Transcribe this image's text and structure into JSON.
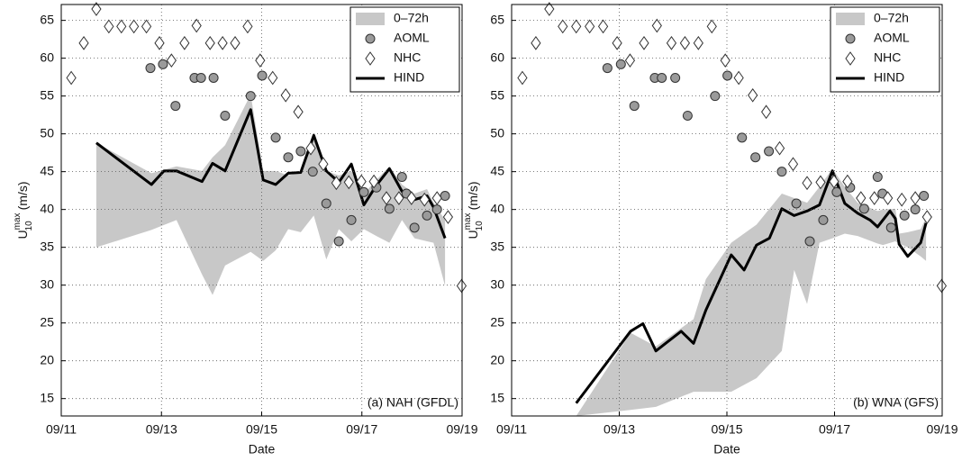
{
  "chart_data": [
    {
      "type": "line",
      "annotation": "(a) NAH (GFDL)",
      "x_label": "Date",
      "y_label": "U",
      "y_label_sup": "max",
      "y_label_sub": "10",
      "y_label_unit": "(m/s)",
      "xlim": [
        11,
        19
      ],
      "xticks": [
        {
          "value": 11,
          "label": "09/11"
        },
        {
          "value": 13,
          "label": "09/13"
        },
        {
          "value": 15,
          "label": "09/15"
        },
        {
          "value": 17,
          "label": "09/17"
        },
        {
          "value": 19,
          "label": "09/19"
        }
      ],
      "ylim": [
        12.7,
        67.1
      ],
      "yticks": [
        15,
        20,
        25,
        30,
        35,
        40,
        45,
        50,
        55,
        60,
        65
      ],
      "grid": true,
      "legend": "upper right",
      "series": [
        {
          "name": "0–72h",
          "type": "area",
          "color": "#c8c8c8",
          "x": [
            11.7,
            12.8,
            13.3,
            13.81,
            14.02,
            14.27,
            14.78,
            15.03,
            15.28,
            15.53,
            15.78,
            16.04,
            16.29,
            16.54,
            16.79,
            17.04,
            17.29,
            17.55,
            17.8,
            18.05,
            18.3,
            18.43,
            18.66
          ],
          "high": [
            48.8,
            44.8,
            45.7,
            45.1,
            46.9,
            48.5,
            55.2,
            45.1,
            45.1,
            44.5,
            44.9,
            49.9,
            45.1,
            44.5,
            45.1,
            42.1,
            43.9,
            45.7,
            43.3,
            42.1,
            42.7,
            40.9,
            38.6
          ],
          "low": [
            35,
            37.3,
            38.6,
            31.4,
            28.7,
            32.6,
            34.4,
            33.2,
            34.6,
            37.4,
            37,
            39.2,
            33.4,
            37.4,
            35.8,
            37.4,
            36.5,
            35.6,
            38.6,
            36.2,
            35.8,
            35.6,
            29.9
          ]
        },
        {
          "name": "AOML",
          "type": "scatter",
          "marker": "circle",
          "color": "#9a9a9a",
          "x": [
            12.78,
            13.03,
            13.28,
            13.66,
            13.79,
            14.04,
            14.27,
            14.78,
            15.01,
            15.28,
            15.53,
            15.78,
            16.02,
            16.29,
            16.54,
            16.79,
            17.04,
            17.29,
            17.55,
            17.8,
            17.89,
            18.05,
            18.3,
            18.5,
            18.66
          ],
          "values": [
            58.7,
            59.2,
            53.7,
            57.4,
            57.4,
            57.4,
            52.4,
            55,
            57.7,
            49.5,
            46.9,
            47.7,
            45,
            40.8,
            35.8,
            38.6,
            42.3,
            42.9,
            40.1,
            44.3,
            42.1,
            37.6,
            39.2,
            40,
            41.8
          ]
        },
        {
          "name": "NHC",
          "type": "scatter",
          "marker": "diamond",
          "color": "#ffffff",
          "x": [
            11.2,
            11.45,
            11.7,
            11.95,
            12.2,
            12.45,
            12.7,
            12.96,
            13.2,
            13.46,
            13.7,
            13.97,
            14.22,
            14.47,
            14.72,
            14.97,
            15.22,
            15.48,
            15.73,
            15.98,
            16.23,
            16.49,
            16.74,
            16.99,
            17.24,
            17.49,
            17.74,
            17.99,
            18.25,
            18.5,
            18.72,
            18.99
          ],
          "values": [
            57.4,
            62,
            66.5,
            64.2,
            64.2,
            64.2,
            64.2,
            62,
            59.7,
            62,
            64.3,
            62,
            62,
            62,
            64.2,
            59.7,
            57.4,
            55.1,
            52.9,
            48.1,
            46,
            43.5,
            43.6,
            43.7,
            43.7,
            41.5,
            41.5,
            41.5,
            41.3,
            41.5,
            39,
            29.9
          ]
        },
        {
          "name": "HIND",
          "type": "line",
          "color": "#000000",
          "x": [
            11.7,
            12.8,
            13.05,
            13.3,
            13.81,
            14.02,
            14.27,
            14.78,
            15.03,
            15.28,
            15.53,
            15.78,
            16.04,
            16.29,
            16.54,
            16.79,
            17.04,
            17.29,
            17.55,
            17.8,
            18.05,
            18.3,
            18.43,
            18.66
          ],
          "values": [
            48.8,
            43.3,
            45.1,
            45.1,
            43.7,
            46.1,
            45.1,
            53.2,
            43.9,
            43.3,
            44.8,
            44.9,
            49.8,
            45.1,
            43.6,
            46,
            40.6,
            43.2,
            45.4,
            42.4,
            41.3,
            41.8,
            40.3,
            36.2
          ]
        }
      ]
    },
    {
      "type": "line",
      "annotation": "(b) WNA (GFS)",
      "x_label": "Date",
      "y_label": "U",
      "y_label_sup": "max",
      "y_label_sub": "10",
      "y_label_unit": "(m/s)",
      "xlim": [
        11,
        19
      ],
      "xticks": [
        {
          "value": 11,
          "label": "09/11"
        },
        {
          "value": 13,
          "label": "09/13"
        },
        {
          "value": 15,
          "label": "09/15"
        },
        {
          "value": 17,
          "label": "09/17"
        },
        {
          "value": 19,
          "label": "09/19"
        }
      ],
      "ylim": [
        12.7,
        67.1
      ],
      "yticks": [
        15,
        20,
        25,
        30,
        35,
        40,
        45,
        50,
        55,
        60,
        65
      ],
      "grid": true,
      "legend": "upper right",
      "series": [
        {
          "name": "0–72h",
          "type": "area",
          "color": "#c8c8c8",
          "x": [
            12.2,
            13.21,
            13.68,
            14.38,
            14.61,
            15.08,
            15.55,
            16.02,
            16.25,
            16.49,
            16.72,
            16.96,
            17.19,
            17.43,
            17.8,
            17.9,
            18.13,
            18.2,
            18.36,
            18.6,
            18.7
          ],
          "high": [
            12.7,
            23.7,
            21.9,
            25.5,
            30.8,
            35.6,
            38,
            42.1,
            41.5,
            40.9,
            43,
            45.4,
            43,
            40.9,
            39.8,
            40,
            40.1,
            36.8,
            37,
            37.4,
            38.9
          ],
          "low": [
            12.7,
            13.5,
            13.9,
            15.9,
            15.9,
            15.9,
            17.7,
            21.3,
            32,
            27.5,
            35.6,
            36.2,
            36.8,
            36.5,
            35.5,
            35.3,
            35.8,
            35.5,
            35,
            33.8,
            33.2
          ]
        },
        {
          "name": "AOML",
          "type": "scatter",
          "marker": "circle",
          "color": "#9a9a9a",
          "x": [
            12.78,
            13.03,
            13.28,
            13.66,
            13.79,
            14.04,
            14.27,
            14.78,
            15.01,
            15.28,
            15.53,
            15.78,
            16.02,
            16.29,
            16.54,
            16.79,
            17.04,
            17.29,
            17.55,
            17.8,
            17.89,
            18.05,
            18.3,
            18.5,
            18.66
          ],
          "values": [
            58.7,
            59.2,
            53.7,
            57.4,
            57.4,
            57.4,
            52.4,
            55,
            57.7,
            49.5,
            46.9,
            47.7,
            45,
            40.8,
            35.8,
            38.6,
            42.3,
            42.9,
            40.1,
            44.3,
            42.1,
            37.6,
            39.2,
            40,
            41.8
          ]
        },
        {
          "name": "NHC",
          "type": "scatter",
          "marker": "diamond",
          "color": "#ffffff",
          "x": [
            11.2,
            11.45,
            11.7,
            11.95,
            12.2,
            12.45,
            12.7,
            12.96,
            13.2,
            13.46,
            13.7,
            13.97,
            14.22,
            14.47,
            14.72,
            14.97,
            15.22,
            15.48,
            15.73,
            15.98,
            16.23,
            16.49,
            16.74,
            16.99,
            17.24,
            17.49,
            17.74,
            17.99,
            18.25,
            18.5,
            18.72,
            18.99
          ],
          "values": [
            57.4,
            62,
            66.5,
            64.2,
            64.2,
            64.2,
            64.2,
            62,
            59.7,
            62,
            64.3,
            62,
            62,
            62,
            64.2,
            59.7,
            57.4,
            55.1,
            52.9,
            48.1,
            46,
            43.5,
            43.6,
            43.7,
            43.7,
            41.5,
            41.5,
            41.5,
            41.3,
            41.5,
            39,
            29.9
          ]
        },
        {
          "name": "HIND",
          "type": "line",
          "color": "#000000",
          "x": [
            12.2,
            13.21,
            13.44,
            13.68,
            14.15,
            14.38,
            14.61,
            15.08,
            15.32,
            15.55,
            15.79,
            16.02,
            16.25,
            16.49,
            16.72,
            16.96,
            17.19,
            17.43,
            17.66,
            17.8,
            18.03,
            18.13,
            18.2,
            18.36,
            18.6,
            18.7
          ],
          "values": [
            14.4,
            23.9,
            24.9,
            21.3,
            23.9,
            22.3,
            26.7,
            34,
            32,
            35.3,
            36.2,
            40.1,
            39.2,
            39.8,
            40.6,
            45.1,
            40.8,
            39.5,
            38.6,
            37.7,
            39.8,
            38.8,
            35.4,
            33.8,
            35.6,
            38.2
          ]
        }
      ]
    }
  ]
}
